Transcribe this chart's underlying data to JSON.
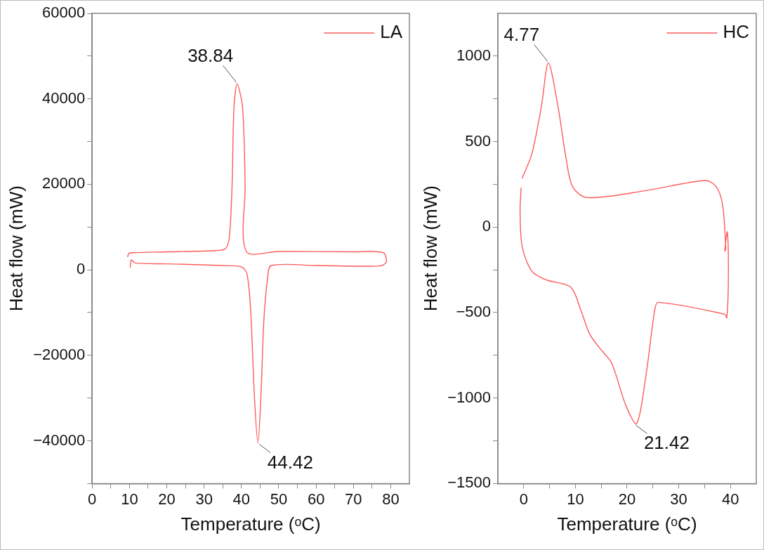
{
  "chart_data": [
    {
      "type": "line",
      "xlabel": "Temperature (ᵒC)",
      "ylabel": "Heat flow (mW)",
      "legend": "top right",
      "grid": false,
      "marker": "none",
      "line_style": "solid",
      "xlim": [
        0,
        85
      ],
      "xticks": [
        0,
        {
          "value": 5,
          "label": null
        },
        10,
        {
          "value": 15,
          "label": null
        },
        20,
        {
          "value": 25,
          "label": null
        },
        30,
        {
          "value": 35,
          "label": null
        },
        40,
        {
          "value": 45,
          "label": null
        },
        50,
        {
          "value": 55,
          "label": null
        },
        60,
        {
          "value": 65,
          "label": null
        },
        70,
        {
          "value": 75,
          "label": null
        },
        80
      ],
      "ylim": [
        -50000,
        60000
      ],
      "yticks": [
        {
          "value": -50000,
          "label": null
        },
        {
          "value": -40000,
          "label": "−40000"
        },
        {
          "value": -30000,
          "label": null
        },
        {
          "value": -20000,
          "label": "−20000"
        },
        {
          "value": -10000,
          "label": null
        },
        0,
        {
          "value": 10000,
          "label": null
        },
        20000,
        {
          "value": 30000,
          "label": null
        },
        40000,
        {
          "value": 50000,
          "label": null
        },
        60000
      ],
      "annotations": [
        {
          "text": "38.84",
          "x": 38.84,
          "y": 43500
        },
        {
          "text": "44.42",
          "x": 44.42,
          "y": -40500
        }
      ],
      "series": [
        {
          "name": "LA",
          "color": "#ff5a5a",
          "x": [
            10.2,
            10.5,
            11.5,
            20,
            35,
            40,
            41.5,
            42.5,
            43.5,
            44.42,
            45.2,
            46,
            47,
            48,
            60,
            77,
            78.8,
            78,
            70,
            50,
            41.3,
            41,
            40.3,
            38.84,
            38,
            37.5,
            36.8,
            35.8,
            33,
            20,
            11,
            9.8,
            9.5
          ],
          "values": [
            500,
            2300,
            1600,
            1400,
            1000,
            700,
            -1000,
            -10000,
            -30000,
            -40500,
            -30000,
            -12000,
            -2000,
            1000,
            1000,
            900,
            1800,
            4000,
            4200,
            4300,
            4300,
            20000,
            38000,
            43500,
            38000,
            20000,
            8000,
            5000,
            4500,
            4200,
            4000,
            3800,
            3000
          ]
        }
      ]
    },
    {
      "type": "line",
      "xlabel": "Temperature (ᵒC)",
      "ylabel": "Heat flow (mW)",
      "legend": "top right",
      "grid": false,
      "marker": "none",
      "line_style": "solid",
      "xlim": [
        -5,
        45
      ],
      "xticks": [
        0,
        {
          "value": 5,
          "label": null
        },
        10,
        {
          "value": 15,
          "label": null
        },
        20,
        {
          "value": 25,
          "label": null
        },
        30,
        {
          "value": 35,
          "label": null
        },
        40
      ],
      "ylim": [
        -1500,
        1250
      ],
      "yticks": [
        {
          "value": -1500,
          "label": "−1500"
        },
        {
          "value": -1250,
          "label": null
        },
        {
          "value": -1000,
          "label": "−1000"
        },
        {
          "value": -750,
          "label": null
        },
        {
          "value": -500,
          "label": "−500"
        },
        {
          "value": -250,
          "label": null
        },
        0,
        {
          "value": 250,
          "label": null
        },
        500,
        {
          "value": 750,
          "label": null
        },
        1000
      ],
      "annotations": [
        {
          "text": "4.77",
          "x": 4.77,
          "y": 960
        },
        {
          "text": "21.42",
          "x": 21.42,
          "y": -1150
        }
      ],
      "series": [
        {
          "name": "HC",
          "color": "#ff5a5a",
          "x": [
            -0.3,
            1.6,
            3.45,
            4.77,
            6.6,
            8.2,
            9.5,
            12.3,
            23.6,
            35.2,
            37.3,
            38.5,
            39.1,
            38.9,
            39.4,
            39.6,
            39.3,
            38.9,
            26.1,
            25.4,
            23.6,
            21.85,
            19.8,
            17,
            14.8,
            12.8,
            11.1,
            9.1,
            4.5,
            1.6,
            -0.3,
            -0.7,
            -0.5
          ],
          "values": [
            285,
            431,
            711,
            960,
            711,
            402,
            234,
            172,
            213,
            272,
            234,
            126,
            -126,
            -140,
            -29,
            -300,
            -531,
            -510,
            -440,
            -477,
            -879,
            -1150,
            -1046,
            -795,
            -711,
            -628,
            -490,
            -351,
            -310,
            -259,
            -113,
            96,
            230
          ]
        }
      ]
    }
  ]
}
